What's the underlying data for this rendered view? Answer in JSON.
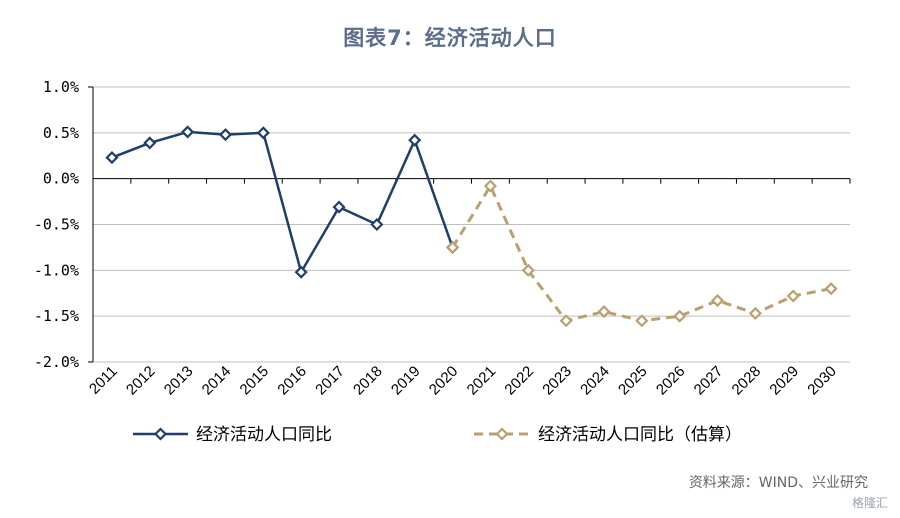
{
  "title": "图表7：经济活动人口",
  "source": "资料来源：WIND、兴业研究",
  "watermark": "格隆汇",
  "colors": {
    "actual": "#1f3e6a",
    "estimate": "#b9a06e",
    "grid": "#bfbfbf",
    "axis": "#000000",
    "title": "#5b6d8c"
  },
  "chart_data": {
    "type": "line",
    "categories": [
      "2011",
      "2012",
      "2013",
      "2014",
      "2015",
      "2016",
      "2017",
      "2018",
      "2019",
      "2020",
      "2021",
      "2022",
      "2023",
      "2024",
      "2025",
      "2026",
      "2027",
      "2028",
      "2029",
      "2030"
    ],
    "yticks": [
      "1.0%",
      "0.5%",
      "0.0%",
      "-0.5%",
      "-1.0%",
      "-1.5%",
      "-2.0%"
    ],
    "ylim": [
      -2.0,
      1.0
    ],
    "y_unit": "%",
    "grid": true,
    "legend_position": "bottom",
    "series": [
      {
        "name": "经济活动人口同比",
        "style": "solid",
        "marker": "diamond",
        "values": [
          0.23,
          0.39,
          0.51,
          0.48,
          0.5,
          -1.02,
          -0.31,
          -0.5,
          0.42,
          -0.75,
          null,
          null,
          null,
          null,
          null,
          null,
          null,
          null,
          null,
          null
        ]
      },
      {
        "name": "经济活动人口同比（估算）",
        "style": "dashed",
        "marker": "diamond",
        "values": [
          null,
          null,
          null,
          null,
          null,
          null,
          null,
          null,
          null,
          -0.75,
          -0.08,
          -1.0,
          -1.55,
          -1.45,
          -1.55,
          -1.5,
          -1.33,
          -1.47,
          -1.28,
          -1.2
        ]
      }
    ]
  }
}
